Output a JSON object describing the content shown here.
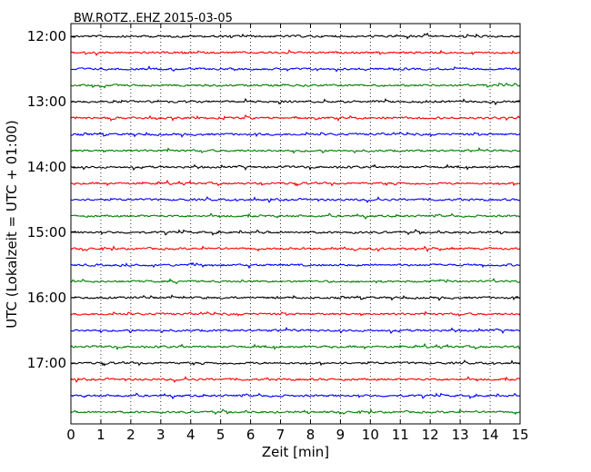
{
  "chart_data": {
    "type": "line",
    "title": "BW.ROTZ..EHZ 2015-03-05",
    "xlabel": "Zeit  [min]",
    "ylabel": "UTC (Lokalzeit = UTC + 01:00)",
    "xlim": [
      0,
      15
    ],
    "x_ticks": [
      "0",
      "1",
      "2",
      "3",
      "4",
      "5",
      "6",
      "7",
      "8",
      "9",
      "10",
      "11",
      "12",
      "13",
      "14",
      "15"
    ],
    "y_ticks": [
      "12:00",
      "13:00",
      "14:00",
      "15:00",
      "16:00",
      "17:00"
    ],
    "grid": "vertical dotted",
    "trace_colors": [
      "#000000",
      "#ff0000",
      "#0000ff",
      "#008000"
    ],
    "trace_count": 24,
    "trace_start": "12:00",
    "trace_minutes": 15
  }
}
